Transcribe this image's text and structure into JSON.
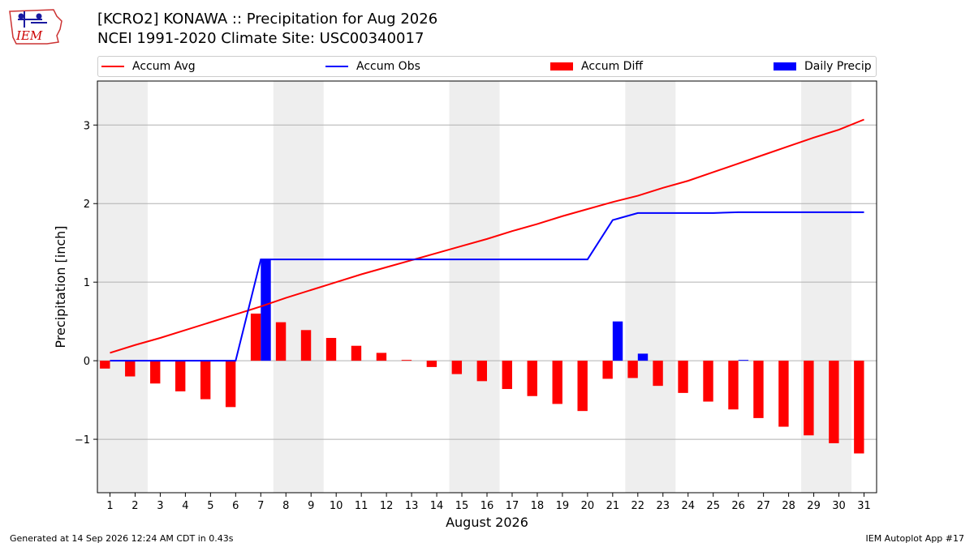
{
  "header": {
    "title": "[KCRO2] KONAWA :: Precipitation for Aug 2026",
    "subtitle": "NCEI 1991-2020 Climate Site: USC00340017",
    "logo_text": "IEM"
  },
  "footer": {
    "generated": "Generated at 14 Sep 2026 12:24 AM CDT in 0.43s",
    "app": "IEM Autoplot App #17"
  },
  "legend": [
    {
      "label": "Accum Avg",
      "color": "#ff0000",
      "kind": "line"
    },
    {
      "label": "Accum Obs",
      "color": "#0000ff",
      "kind": "line"
    },
    {
      "label": "Accum Diff",
      "color": "#ff0000",
      "kind": "bar"
    },
    {
      "label": "Daily Precip",
      "color": "#0000ff",
      "kind": "bar"
    }
  ],
  "chart_data": {
    "type": "bar",
    "xlabel": "August 2026",
    "ylabel": "Precipitation [inch]",
    "x": [
      1,
      2,
      3,
      4,
      5,
      6,
      7,
      8,
      9,
      10,
      11,
      12,
      13,
      14,
      15,
      16,
      17,
      18,
      19,
      20,
      21,
      22,
      23,
      24,
      25,
      26,
      27,
      28,
      29,
      30,
      31
    ],
    "xlim": [
      0.5,
      31.5
    ],
    "ylim": [
      -1.68,
      3.56
    ],
    "yticks": [
      -1,
      0,
      1,
      2,
      3
    ],
    "ytick_labels": [
      "−1",
      "0",
      "1",
      "2",
      "3"
    ],
    "grid": "horizontal",
    "legend_position": "top",
    "weekend_shading": [
      [
        0.5,
        2.5
      ],
      [
        7.5,
        9.5
      ],
      [
        14.5,
        16.5
      ],
      [
        21.5,
        23.5
      ],
      [
        28.5,
        30.5
      ]
    ],
    "shading_color": "#eeeeee",
    "series": [
      {
        "name": "Accum Avg",
        "type": "line",
        "color": "#ff0000",
        "values": [
          0.1,
          0.2,
          0.29,
          0.39,
          0.49,
          0.59,
          0.69,
          0.8,
          0.9,
          1.0,
          1.1,
          1.19,
          1.28,
          1.37,
          1.46,
          1.55,
          1.65,
          1.74,
          1.84,
          1.93,
          2.02,
          2.1,
          2.2,
          2.29,
          2.4,
          2.51,
          2.62,
          2.73,
          2.84,
          2.94,
          3.07
        ]
      },
      {
        "name": "Accum Obs",
        "type": "line",
        "color": "#0000ff",
        "values": [
          0,
          0,
          0,
          0,
          0,
          0,
          1.29,
          1.29,
          1.29,
          1.29,
          1.29,
          1.29,
          1.29,
          1.29,
          1.29,
          1.29,
          1.29,
          1.29,
          1.29,
          1.29,
          1.79,
          1.88,
          1.88,
          1.88,
          1.88,
          1.89,
          1.89,
          1.89,
          1.89,
          1.89,
          1.89
        ]
      },
      {
        "name": "Accum Diff",
        "type": "bar",
        "color": "#ff0000",
        "values": [
          -0.1,
          -0.2,
          -0.29,
          -0.39,
          -0.49,
          -0.59,
          0.6,
          0.49,
          0.39,
          0.29,
          0.19,
          0.1,
          0.01,
          -0.08,
          -0.17,
          -0.26,
          -0.36,
          -0.45,
          -0.55,
          -0.64,
          -0.23,
          -0.22,
          -0.32,
          -0.41,
          -0.52,
          -0.62,
          -0.73,
          -0.84,
          -0.95,
          -1.05,
          -1.18
        ]
      },
      {
        "name": "Daily Precip",
        "type": "bar",
        "color": "#0000ff",
        "values": [
          0,
          0,
          0,
          0,
          0,
          0,
          1.29,
          0,
          0,
          0,
          0,
          0,
          0,
          0,
          0,
          0,
          0,
          0,
          0,
          0,
          0.5,
          0.09,
          0,
          0,
          0,
          0.01,
          0,
          0,
          0,
          0,
          0
        ]
      }
    ]
  }
}
